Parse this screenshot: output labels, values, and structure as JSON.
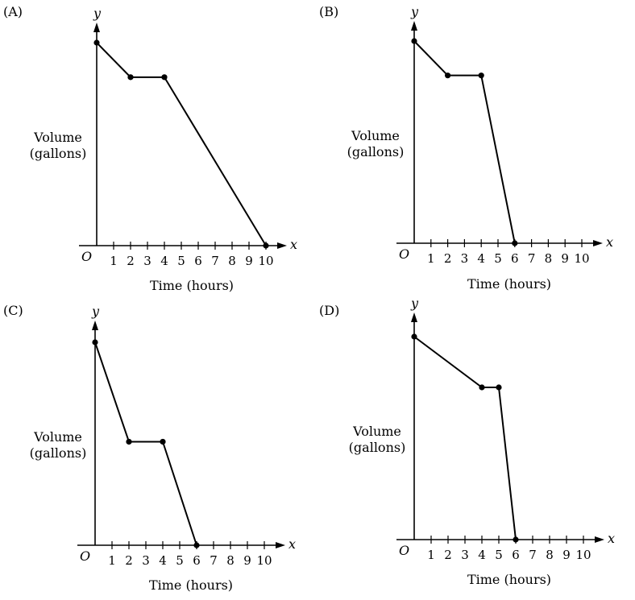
{
  "chart_data": [
    {
      "panel": "(A)",
      "type": "line",
      "x_axis_letter": "x",
      "y_axis_letter": "y",
      "origin_label": "O",
      "xlabel": "Time (hours)",
      "ylabel_lines": [
        "Volume",
        "(gallons)"
      ],
      "x_ticks": [
        "1",
        "2",
        "3",
        "4",
        "5",
        "6",
        "7",
        "8",
        "9",
        "10"
      ],
      "points": [
        {
          "x": 0,
          "y": 1.0
        },
        {
          "x": 2,
          "y": 0.83
        },
        {
          "x": 4,
          "y": 0.83
        },
        {
          "x": 10,
          "y": 0
        }
      ]
    },
    {
      "panel": "(B)",
      "type": "line",
      "x_axis_letter": "x",
      "y_axis_letter": "y",
      "origin_label": "O",
      "xlabel": "Time (hours)",
      "ylabel_lines": [
        "Volume",
        "(gallons)"
      ],
      "x_ticks": [
        "1",
        "2",
        "3",
        "4",
        "5",
        "6",
        "7",
        "8",
        "9",
        "10"
      ],
      "points": [
        {
          "x": 0,
          "y": 1.0
        },
        {
          "x": 2,
          "y": 0.83
        },
        {
          "x": 4,
          "y": 0.83
        },
        {
          "x": 6,
          "y": 0
        }
      ]
    },
    {
      "panel": "(C)",
      "type": "line",
      "x_axis_letter": "x",
      "y_axis_letter": "y",
      "origin_label": "O",
      "xlabel": "Time (hours)",
      "ylabel_lines": [
        "Volume",
        "(gallons)"
      ],
      "x_ticks": [
        "1",
        "2",
        "3",
        "4",
        "5",
        "6",
        "7",
        "8",
        "9",
        "10"
      ],
      "points": [
        {
          "x": 0,
          "y": 1.0
        },
        {
          "x": 2,
          "y": 0.51
        },
        {
          "x": 4,
          "y": 0.51
        },
        {
          "x": 6,
          "y": 0
        }
      ]
    },
    {
      "panel": "(D)",
      "type": "line",
      "x_axis_letter": "x",
      "y_axis_letter": "y",
      "origin_label": "O",
      "xlabel": "Time (hours)",
      "ylabel_lines": [
        "Volume",
        "(gallons)"
      ],
      "x_ticks": [
        "1",
        "2",
        "3",
        "4",
        "5",
        "6",
        "7",
        "8",
        "9",
        "10"
      ],
      "points": [
        {
          "x": 0,
          "y": 1.0
        },
        {
          "x": 4,
          "y": 0.75
        },
        {
          "x": 5,
          "y": 0.75
        },
        {
          "x": 6,
          "y": 0
        }
      ]
    }
  ]
}
